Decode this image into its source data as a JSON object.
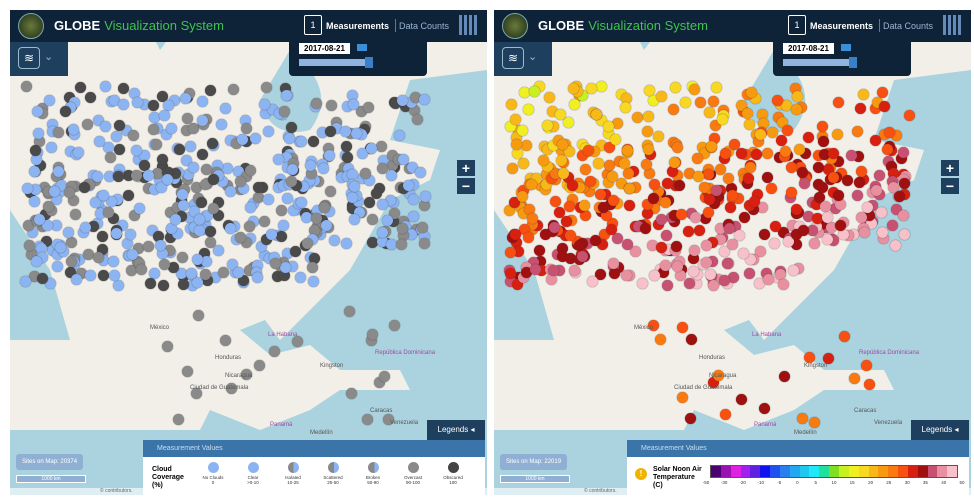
{
  "app": {
    "brand": "GLOBE",
    "title": "Visualization System",
    "measurements_label": "Measurements",
    "calendar_day": "1",
    "data_counts_label": "Data Counts"
  },
  "map_labels": [
    "México",
    "La Habana",
    "Kingston",
    "Honduras",
    "Nicaragua",
    "Ciudad de Guatemala",
    "República Dominicana",
    "Caracas",
    "Venezuela",
    "Panamá",
    "Medellín"
  ],
  "attribution": "© contributors.",
  "scale_label": "1000 km",
  "legends_label": "Legends",
  "legend_header": "Measurement Values",
  "panels": [
    {
      "date": "2017-08-21",
      "sites": "Sites on Map: 20374",
      "legend_title": "Cloud Coverage (%)",
      "categories": [
        {
          "label": "No Clouds",
          "range": "0",
          "color": "#8cb4f2"
        },
        {
          "label": "Clear",
          "range": ">0-10",
          "color": "#8cb4f2"
        },
        {
          "label": "Isolated",
          "range": "10-25",
          "color": "#8cb4f2"
        },
        {
          "label": "Scattered",
          "range": "25-50",
          "color": "#8cb4f2"
        },
        {
          "label": "Broken",
          "range": "50-90",
          "color": "#888888"
        },
        {
          "label": "Overcast",
          "range": "90-100",
          "color": "#8a8a8a"
        },
        {
          "label": "Obscured",
          "range": "100",
          "color": "#444444"
        }
      ]
    },
    {
      "date": "2017-08-21",
      "sites": "Sites on Map: 22019",
      "legend_title": "Solar Noon Air Temperature (C)",
      "scale_colors": [
        "#4b0070",
        "#9a10b0",
        "#e020e0",
        "#a020f0",
        "#6020e0",
        "#1010f0",
        "#2050f0",
        "#2a7ff0",
        "#20a8f0",
        "#20c8f0",
        "#20e8f8",
        "#20e0a0",
        "#80e020",
        "#c8f020",
        "#f0f020",
        "#f8d820",
        "#f8b818",
        "#f89a10",
        "#f87a10",
        "#f85010",
        "#d82010",
        "#a01010",
        "#c85070",
        "#e890a0",
        "#f8c0c8"
      ],
      "ticks": [
        "-50",
        "-30",
        "-20",
        "-10",
        "-5",
        "0",
        "5",
        "10",
        "15",
        "20",
        "25",
        "30",
        "35",
        "40",
        "50"
      ]
    }
  ]
}
